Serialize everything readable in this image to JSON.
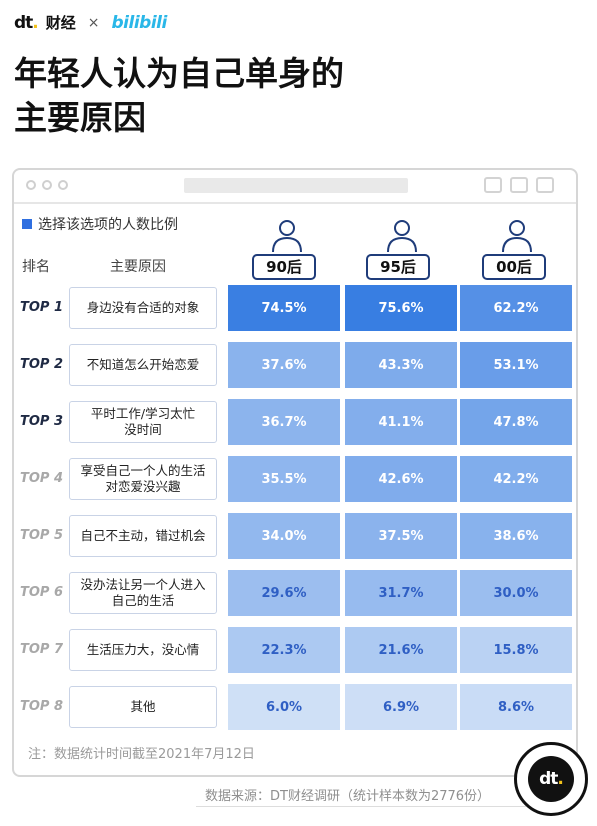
{
  "brand": {
    "dt_logo": "dt",
    "dt_name": "财经",
    "cross": "×",
    "partner": "bilibili"
  },
  "title": {
    "line1": "年轻人认为自己单身的",
    "line2": "主要原因"
  },
  "legend": "选择该选项的人数比例",
  "headers": {
    "rank": "排名",
    "reason": "主要原因"
  },
  "note": "注：数据统计时间截至2021年7月12日",
  "source": "数据来源：DT财经调研（统计样本数为2776份）",
  "colors": {
    "accent": "#2f6fe0",
    "rank_dark": "#1f2a44",
    "rank_light": "#a8a8a8"
  },
  "chart_data": {
    "type": "table",
    "categories": [
      "身边没有合适的对象",
      "不知道怎么开始恋爱",
      "平时工作/学习太忙没时间",
      "享受自己一个人的生活对恋爱没兴趣",
      "自己不主动，错过机会",
      "没办法让另一个人进入自己的生活",
      "生活压力大，没心情",
      "其他"
    ],
    "series": [
      {
        "name": "90后",
        "values": [
          74.5,
          37.6,
          36.7,
          35.5,
          34.0,
          29.6,
          22.3,
          6.0
        ]
      },
      {
        "name": "95后",
        "values": [
          75.6,
          43.3,
          41.1,
          42.6,
          37.5,
          31.7,
          21.6,
          6.9
        ]
      },
      {
        "name": "00后",
        "values": [
          62.2,
          53.1,
          47.8,
          42.2,
          38.6,
          30.0,
          15.8,
          8.6
        ]
      }
    ],
    "unit": "%"
  },
  "rows": [
    {
      "rank": "TOP 1",
      "reason": "身边没有合适的对象",
      "v": [
        "74.5%",
        "75.6%",
        "62.2%"
      ]
    },
    {
      "rank": "TOP 2",
      "reason": "不知道怎么开始恋爱",
      "v": [
        "37.6%",
        "43.3%",
        "53.1%"
      ]
    },
    {
      "rank": "TOP 3",
      "reason": "平时工作/学习太忙\n没时间",
      "v": [
        "36.7%",
        "41.1%",
        "47.8%"
      ]
    },
    {
      "rank": "TOP 4",
      "reason": "享受自己一个人的生活\n对恋爱没兴趣",
      "v": [
        "35.5%",
        "42.6%",
        "42.2%"
      ]
    },
    {
      "rank": "TOP 5",
      "reason": "自己不主动，错过机会",
      "v": [
        "34.0%",
        "37.5%",
        "38.6%"
      ]
    },
    {
      "rank": "TOP 6",
      "reason": "没办法让另一个人进入\n自己的生活",
      "v": [
        "29.6%",
        "31.7%",
        "30.0%"
      ]
    },
    {
      "rank": "TOP 7",
      "reason": "生活压力大，没心情",
      "v": [
        "22.3%",
        "21.6%",
        "15.8%"
      ]
    },
    {
      "rank": "TOP 8",
      "reason": "其他",
      "v": [
        "6.0%",
        "6.9%",
        "8.6%"
      ]
    }
  ]
}
